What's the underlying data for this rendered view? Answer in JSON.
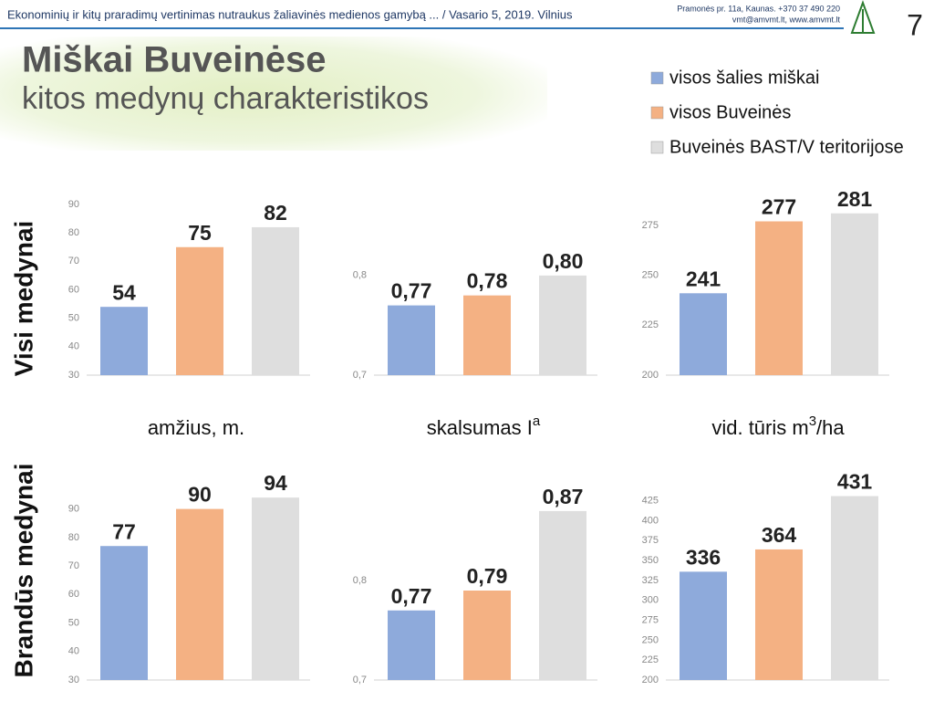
{
  "header": {
    "banner": "Ekonominių ir kitų praradimų vertinimas nutraukus žaliavinės medienos gamybą ... / Vasario 5, 2019.  Vilnius",
    "address": "Pramonės pr. 11a, Kaunas. +370 37 490 220",
    "contacts": "vmt@amvmt.lt, www.amvmt.lt",
    "page": "7"
  },
  "title": "Miškai Buveinėse",
  "subtitle": "kitos medynų charakteristikos",
  "legend": [
    {
      "name": "visos šalies miškai",
      "color": "#8eaadb"
    },
    {
      "name": "visos Buveinės",
      "color": "#f4b183"
    },
    {
      "name": "Buveinės BAST/V teritorijose",
      "color": "#dedede"
    }
  ],
  "row_labels": [
    "Visi medynai",
    "Brandūs medynai"
  ],
  "column_labels": [
    {
      "text": "amžius, m.",
      "sup": null
    },
    {
      "text": "skalsumas I",
      "sup": "a"
    },
    {
      "text": "vid. tūris m",
      "sup": "3",
      "after": "/ha"
    }
  ],
  "chart_data": [
    {
      "type": "bar",
      "values": [
        54,
        75,
        82
      ],
      "ylim": [
        30,
        90
      ],
      "yticks": [
        30,
        40,
        50,
        60,
        70,
        80,
        90
      ]
    },
    {
      "type": "bar",
      "values": [
        0.77,
        0.78,
        0.8
      ],
      "value_labels": [
        "0,77",
        "0,78",
        "0,80"
      ],
      "ylim": [
        0.7,
        0.82
      ],
      "yticks": [
        {
          "value": 0.7,
          "label": "0,7"
        },
        {
          "value": 0.8,
          "label": "0,8"
        }
      ]
    },
    {
      "type": "bar",
      "values": [
        241,
        277,
        281
      ],
      "ylim": [
        200,
        285
      ],
      "yticks": [
        200,
        225,
        250,
        275
      ]
    },
    {
      "type": "bar",
      "values": [
        77,
        90,
        94
      ],
      "ylim": [
        30,
        95
      ],
      "yticks": [
        30,
        40,
        50,
        60,
        70,
        80,
        90
      ]
    },
    {
      "type": "bar",
      "values": [
        0.77,
        0.79,
        0.87
      ],
      "value_labels": [
        "0,77",
        "0,79",
        "0,87"
      ],
      "ylim": [
        0.7,
        0.88
      ],
      "yticks": [
        {
          "value": 0.7,
          "label": "0,7"
        },
        {
          "value": 0.8,
          "label": "0,8"
        }
      ]
    },
    {
      "type": "bar",
      "values": [
        336,
        364,
        431
      ],
      "ylim": [
        200,
        435
      ],
      "yticks": [
        200,
        225,
        250,
        275,
        300,
        325,
        350,
        375,
        400,
        425
      ]
    }
  ]
}
